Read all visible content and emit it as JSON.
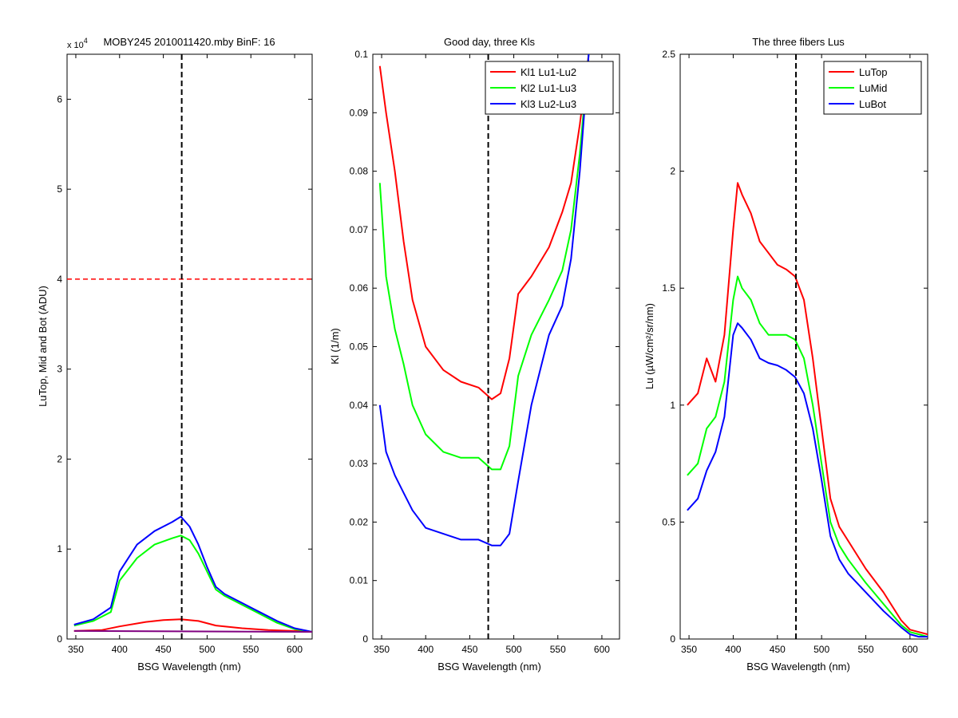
{
  "colors": {
    "red": "#ff0000",
    "green": "#00ff00",
    "blue": "#0000ff",
    "purple": "#800080",
    "black": "#000000"
  },
  "chart_data": [
    {
      "type": "line",
      "title": "MOBY245  2010011420.mby BinF: 16",
      "xlabel": "BSG Wavelength (nm)",
      "ylabel": "LuTop, Mid and Bot (ADU)",
      "y_multiplier_label": "x 10",
      "y_multiplier_exponent": "4",
      "xlim": [
        340,
        620
      ],
      "ylim": [
        0,
        6.5
      ],
      "xticks": [
        350,
        400,
        450,
        500,
        550,
        600
      ],
      "yticks": [
        0,
        1,
        2,
        3,
        4,
        5,
        6
      ],
      "vline_x": 471,
      "hline_y": 4,
      "series": [
        {
          "color": "red",
          "x": [
            348,
            380,
            400,
            430,
            450,
            470,
            490,
            510,
            540,
            570,
            600,
            620
          ],
          "y": [
            0.09,
            0.1,
            0.14,
            0.19,
            0.21,
            0.22,
            0.2,
            0.15,
            0.12,
            0.1,
            0.09,
            0.08
          ]
        },
        {
          "color": "green",
          "x": [
            348,
            370,
            390,
            400,
            420,
            440,
            460,
            470,
            480,
            490,
            500,
            510,
            520,
            540,
            560,
            580,
            600,
            620
          ],
          "y": [
            0.15,
            0.2,
            0.3,
            0.65,
            0.9,
            1.05,
            1.12,
            1.15,
            1.1,
            0.95,
            0.75,
            0.55,
            0.48,
            0.38,
            0.28,
            0.18,
            0.11,
            0.08
          ]
        },
        {
          "color": "blue",
          "x": [
            348,
            370,
            390,
            400,
            420,
            440,
            460,
            470,
            480,
            490,
            500,
            510,
            520,
            540,
            560,
            580,
            600,
            620
          ],
          "y": [
            0.16,
            0.22,
            0.35,
            0.75,
            1.05,
            1.2,
            1.3,
            1.36,
            1.25,
            1.05,
            0.8,
            0.58,
            0.5,
            0.4,
            0.3,
            0.2,
            0.12,
            0.08
          ]
        },
        {
          "color": "purple",
          "x": [
            348,
            620
          ],
          "y": [
            0.09,
            0.08
          ]
        }
      ]
    },
    {
      "type": "line",
      "title": "Good day, three Kls",
      "xlabel": "BSG Wavelength (nm)",
      "ylabel": "Kl (1/m)",
      "xlim": [
        340,
        620
      ],
      "ylim": [
        0,
        0.1
      ],
      "xticks": [
        350,
        400,
        450,
        500,
        550,
        600
      ],
      "yticks": [
        0,
        0.01,
        0.02,
        0.03,
        0.04,
        0.05,
        0.06,
        0.07,
        0.08,
        0.09,
        0.1
      ],
      "vline_x": 471,
      "legend_position": "top-right",
      "series": [
        {
          "name": "Kl1 Lu1-Lu2",
          "color": "red",
          "x": [
            348,
            355,
            365,
            375,
            385,
            400,
            420,
            440,
            460,
            475,
            485,
            495,
            505,
            520,
            540,
            555,
            565,
            575,
            585
          ],
          "y": [
            0.098,
            0.09,
            0.08,
            0.068,
            0.058,
            0.05,
            0.046,
            0.044,
            0.043,
            0.041,
            0.042,
            0.048,
            0.059,
            0.062,
            0.067,
            0.073,
            0.078,
            0.088,
            0.1
          ]
        },
        {
          "name": "Kl2 Lu1-Lu3",
          "color": "green",
          "x": [
            348,
            355,
            365,
            375,
            385,
            400,
            420,
            440,
            460,
            475,
            485,
            495,
            505,
            520,
            540,
            555,
            565,
            575,
            585
          ],
          "y": [
            0.078,
            0.062,
            0.053,
            0.047,
            0.04,
            0.035,
            0.032,
            0.031,
            0.031,
            0.029,
            0.029,
            0.033,
            0.045,
            0.052,
            0.058,
            0.063,
            0.07,
            0.083,
            0.1
          ]
        },
        {
          "name": "Kl3 Lu2-Lu3",
          "color": "blue",
          "x": [
            348,
            355,
            365,
            375,
            385,
            400,
            420,
            440,
            460,
            475,
            485,
            495,
            505,
            520,
            540,
            555,
            565,
            575,
            585
          ],
          "y": [
            0.04,
            0.032,
            0.028,
            0.025,
            0.022,
            0.019,
            0.018,
            0.017,
            0.017,
            0.016,
            0.016,
            0.018,
            0.027,
            0.04,
            0.052,
            0.057,
            0.065,
            0.08,
            0.1
          ]
        }
      ]
    },
    {
      "type": "line",
      "title": "The three fibers Lus",
      "xlabel": "BSG Wavelength (nm)",
      "ylabel": "Lu (µW/cm²/sr/nm)",
      "xlim": [
        340,
        620
      ],
      "ylim": [
        0,
        2.5
      ],
      "xticks": [
        350,
        400,
        450,
        500,
        550,
        600
      ],
      "yticks": [
        0,
        0.5,
        1,
        1.5,
        2,
        2.5
      ],
      "vline_x": 471,
      "legend_position": "top-right",
      "series": [
        {
          "name": "LuTop",
          "color": "red",
          "x": [
            348,
            360,
            370,
            380,
            390,
            400,
            405,
            410,
            420,
            430,
            440,
            450,
            460,
            470,
            480,
            490,
            500,
            510,
            520,
            530,
            550,
            570,
            590,
            600,
            610,
            620
          ],
          "y": [
            1.0,
            1.05,
            1.2,
            1.1,
            1.3,
            1.75,
            1.95,
            1.9,
            1.82,
            1.7,
            1.65,
            1.6,
            1.58,
            1.55,
            1.45,
            1.2,
            0.9,
            0.6,
            0.48,
            0.42,
            0.3,
            0.2,
            0.08,
            0.04,
            0.03,
            0.02
          ]
        },
        {
          "name": "LuMid",
          "color": "green",
          "x": [
            348,
            360,
            370,
            380,
            390,
            400,
            405,
            410,
            420,
            430,
            440,
            450,
            460,
            470,
            480,
            490,
            500,
            510,
            520,
            530,
            550,
            570,
            590,
            600,
            610,
            620
          ],
          "y": [
            0.7,
            0.75,
            0.9,
            0.95,
            1.1,
            1.45,
            1.55,
            1.5,
            1.45,
            1.35,
            1.3,
            1.3,
            1.3,
            1.28,
            1.2,
            1.0,
            0.75,
            0.5,
            0.4,
            0.34,
            0.24,
            0.15,
            0.06,
            0.03,
            0.02,
            0.01
          ]
        },
        {
          "name": "LuBot",
          "color": "blue",
          "x": [
            348,
            360,
            370,
            380,
            390,
            400,
            405,
            410,
            420,
            430,
            440,
            450,
            460,
            470,
            480,
            490,
            500,
            510,
            520,
            530,
            550,
            570,
            590,
            600,
            610,
            620
          ],
          "y": [
            0.55,
            0.6,
            0.72,
            0.8,
            0.95,
            1.3,
            1.35,
            1.33,
            1.28,
            1.2,
            1.18,
            1.17,
            1.15,
            1.12,
            1.05,
            0.9,
            0.68,
            0.44,
            0.34,
            0.28,
            0.2,
            0.12,
            0.05,
            0.02,
            0.01,
            0.01
          ]
        }
      ]
    }
  ]
}
